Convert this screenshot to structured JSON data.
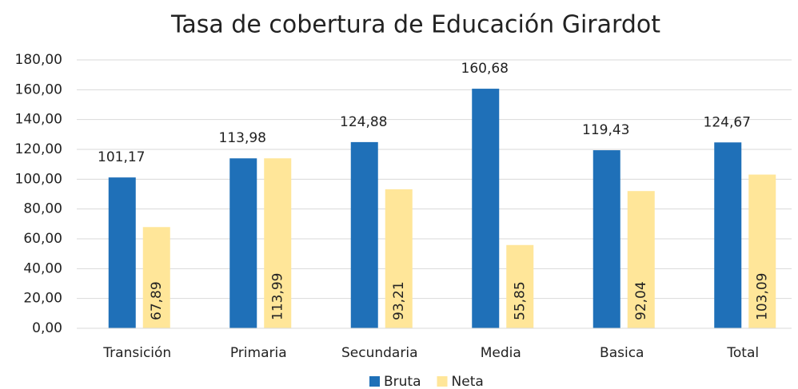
{
  "chart_data": {
    "type": "bar",
    "title": "Tasa de cobertura de Educación Girardot",
    "categories": [
      "Transición",
      "Primaria",
      "Secundaria",
      "Media",
      "Basica",
      "Total"
    ],
    "series": [
      {
        "name": "Bruta",
        "color": "#1f70b8",
        "values": [
          101.17,
          113.98,
          124.88,
          160.68,
          119.43,
          124.67
        ],
        "value_labels": [
          "101,17",
          "113,98",
          "124,88",
          "160,68",
          "119,43",
          "124,67"
        ]
      },
      {
        "name": "Neta",
        "color": "#ffe699",
        "values": [
          67.89,
          113.99,
          93.21,
          55.85,
          92.04,
          103.09
        ],
        "value_labels": [
          "67,89",
          "113,99",
          "93,21",
          "55,85",
          "92,04",
          "103,09"
        ]
      }
    ],
    "ylim": [
      0,
      180
    ],
    "yticks": [
      {
        "value": 0,
        "label": "0,00"
      },
      {
        "value": 20,
        "label": "20,00"
      },
      {
        "value": 40,
        "label": "40,00"
      },
      {
        "value": 60,
        "label": "60,00"
      },
      {
        "value": 80,
        "label": "80,00"
      },
      {
        "value": 100,
        "label": "100,00"
      },
      {
        "value": 120,
        "label": "120,00"
      },
      {
        "value": 140,
        "label": "140,00"
      },
      {
        "value": 160,
        "label": "160,00"
      },
      {
        "value": 180,
        "label": "180,00"
      }
    ],
    "grid": true,
    "legend": "bottom"
  }
}
